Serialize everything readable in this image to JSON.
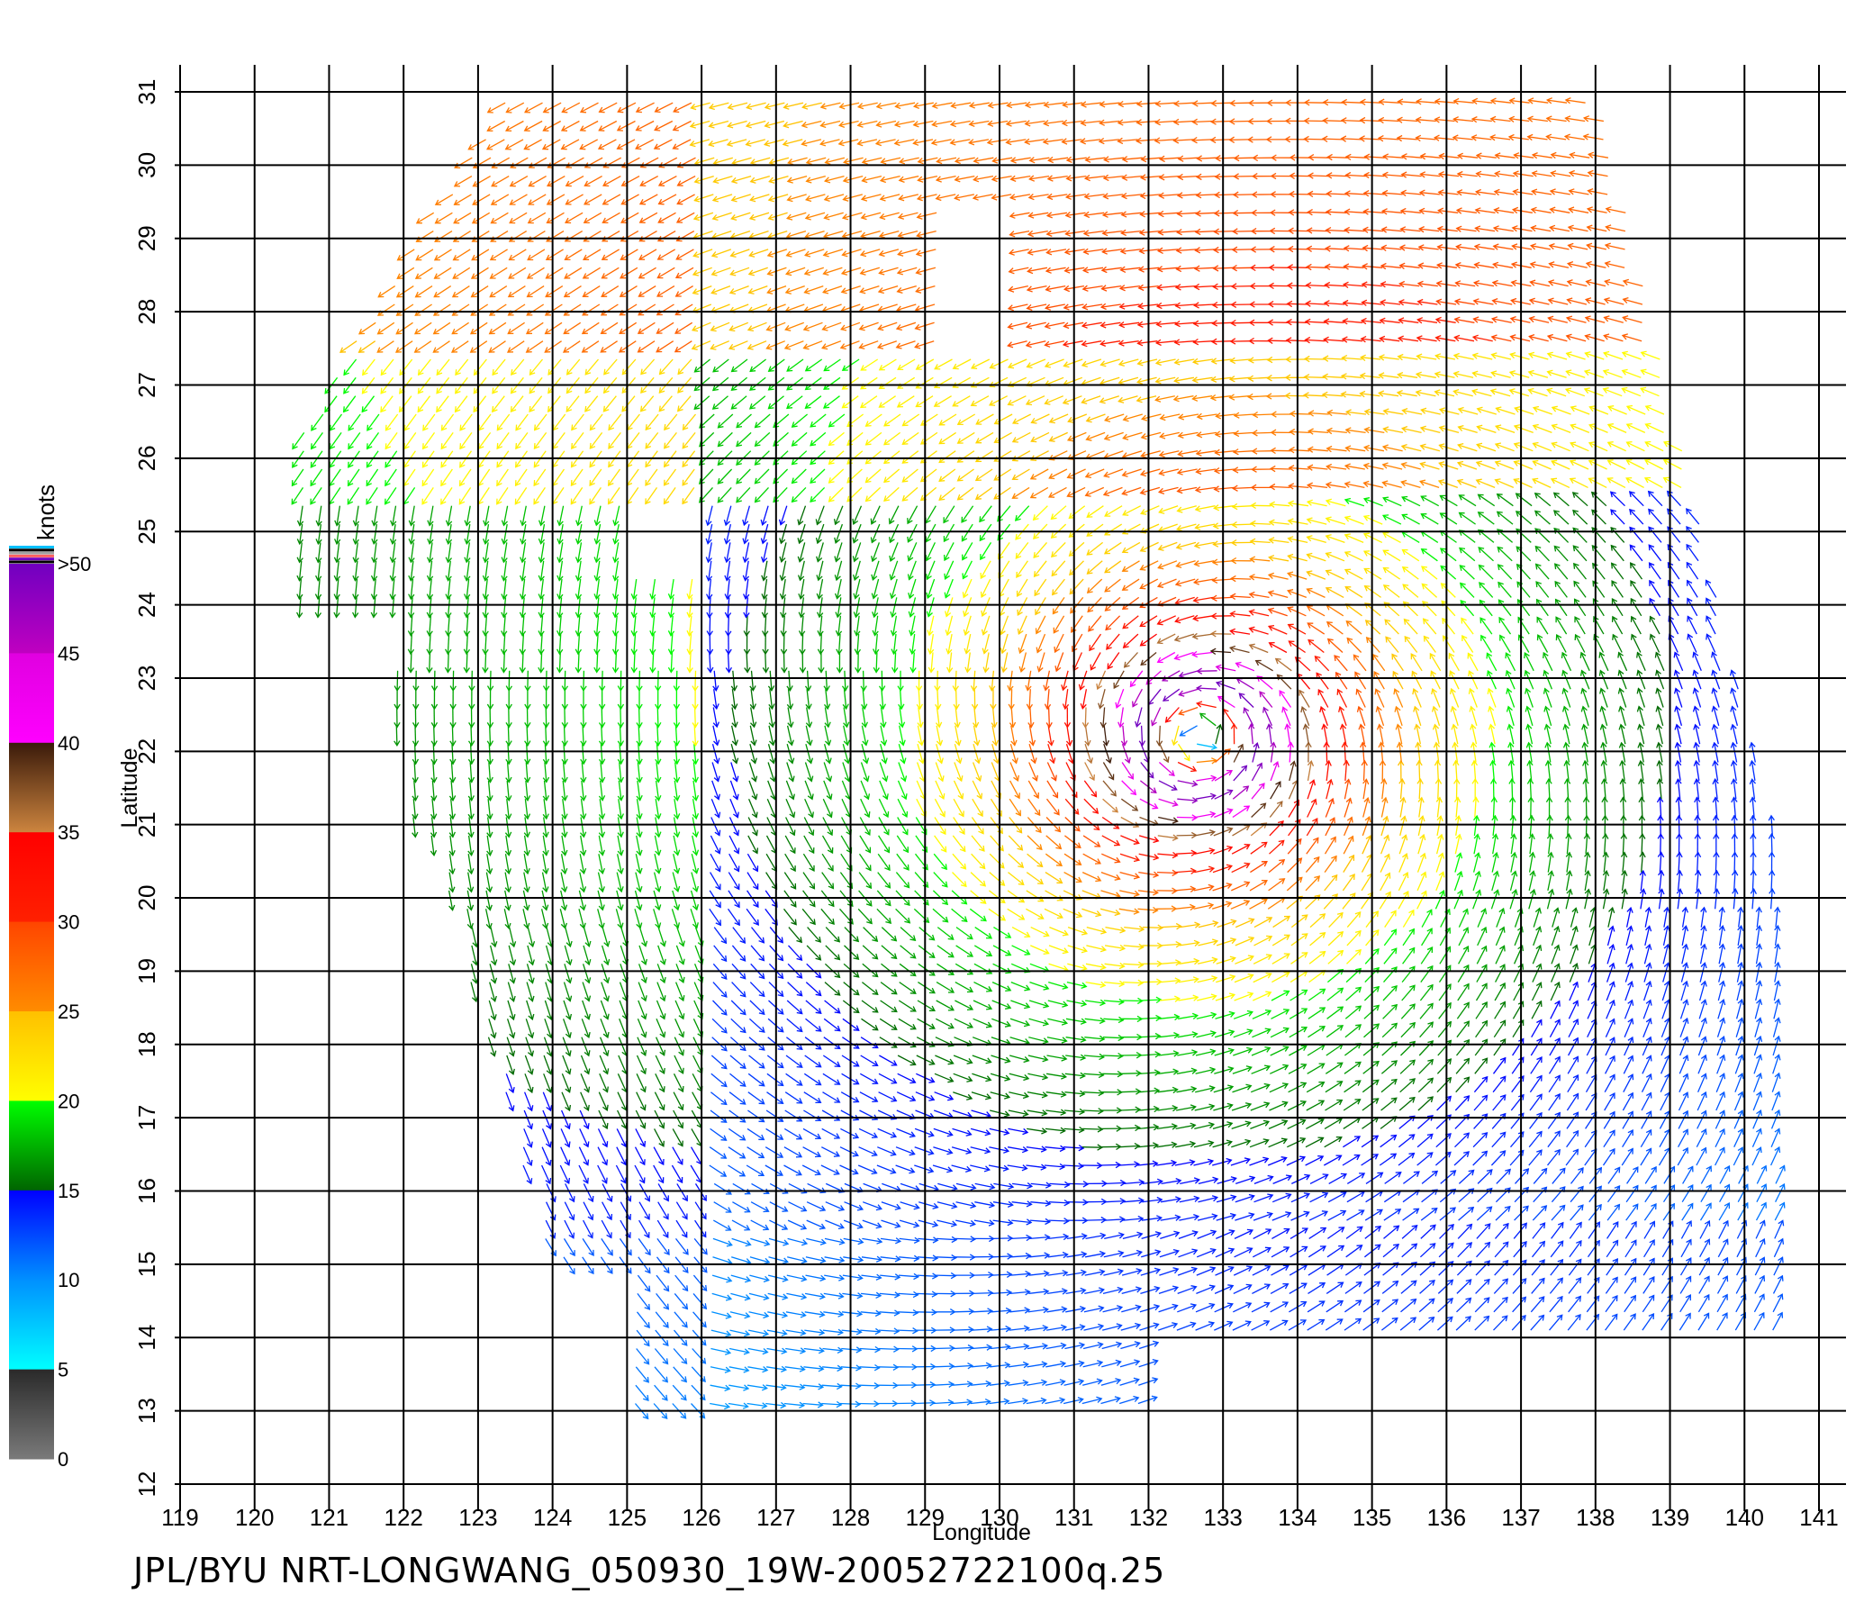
{
  "chart_data": {
    "type": "vector-field",
    "xlabel": "Longitude",
    "ylabel": "Latitude",
    "xlim": [
      119,
      141
    ],
    "ylim": [
      12,
      31
    ],
    "x_ticks": [
      "119",
      "120",
      "121",
      "122",
      "123",
      "124",
      "125",
      "126",
      "127",
      "128",
      "129",
      "130",
      "131",
      "132",
      "133",
      "134",
      "135",
      "136",
      "137",
      "138",
      "139",
      "140",
      "141"
    ],
    "y_ticks": [
      "12",
      "13",
      "14",
      "15",
      "16",
      "17",
      "18",
      "19",
      "20",
      "21",
      "22",
      "23",
      "24",
      "25",
      "26",
      "27",
      "28",
      "29",
      "30",
      "31"
    ],
    "grid": true,
    "colorbar": {
      "unit_label": "knots",
      "ticks": [
        "0",
        "5",
        "10",
        "15",
        "20",
        "25",
        "30",
        "35",
        "40",
        "45",
        ">50"
      ],
      "bands": [
        {
          "from": 0,
          "to": 5,
          "colors": [
            "#7a7a7a",
            "#2a2a2a"
          ]
        },
        {
          "from": 5,
          "to": 10,
          "colors": [
            "#00ffff",
            "#0090ff"
          ]
        },
        {
          "from": 10,
          "to": 15,
          "colors": [
            "#0090ff",
            "#0000ff"
          ]
        },
        {
          "from": 15,
          "to": 20,
          "colors": [
            "#006400",
            "#00ff00"
          ]
        },
        {
          "from": 20,
          "to": 25,
          "colors": [
            "#ffff00",
            "#ffc000"
          ]
        },
        {
          "from": 25,
          "to": 30,
          "colors": [
            "#ff8c00",
            "#ff4500"
          ]
        },
        {
          "from": 30,
          "to": 35,
          "colors": [
            "#ff2000",
            "#ff0000"
          ]
        },
        {
          "from": 35,
          "to": 40,
          "colors": [
            "#cd853f",
            "#3a1a0a"
          ]
        },
        {
          "from": 40,
          "to": 45,
          "colors": [
            "#ff00ff",
            "#e000e0"
          ]
        },
        {
          "from": 45,
          "to": 50,
          "colors": [
            "#c000c0",
            "#7000c0"
          ]
        }
      ]
    },
    "storm": {
      "name": "LONGWANG",
      "center": {
        "lon": 132.7,
        "lat": 22.2
      },
      "max_wind_knots": 50,
      "rotation": "counter-clockwise"
    },
    "swath_lat_range": [
      13,
      30.9
    ],
    "swath_lon_range": [
      120.5,
      140.5
    ]
  },
  "footer": {
    "title": "JPL/BYU  NRT-LONGWANG_050930_19W-20052722100q.25"
  }
}
